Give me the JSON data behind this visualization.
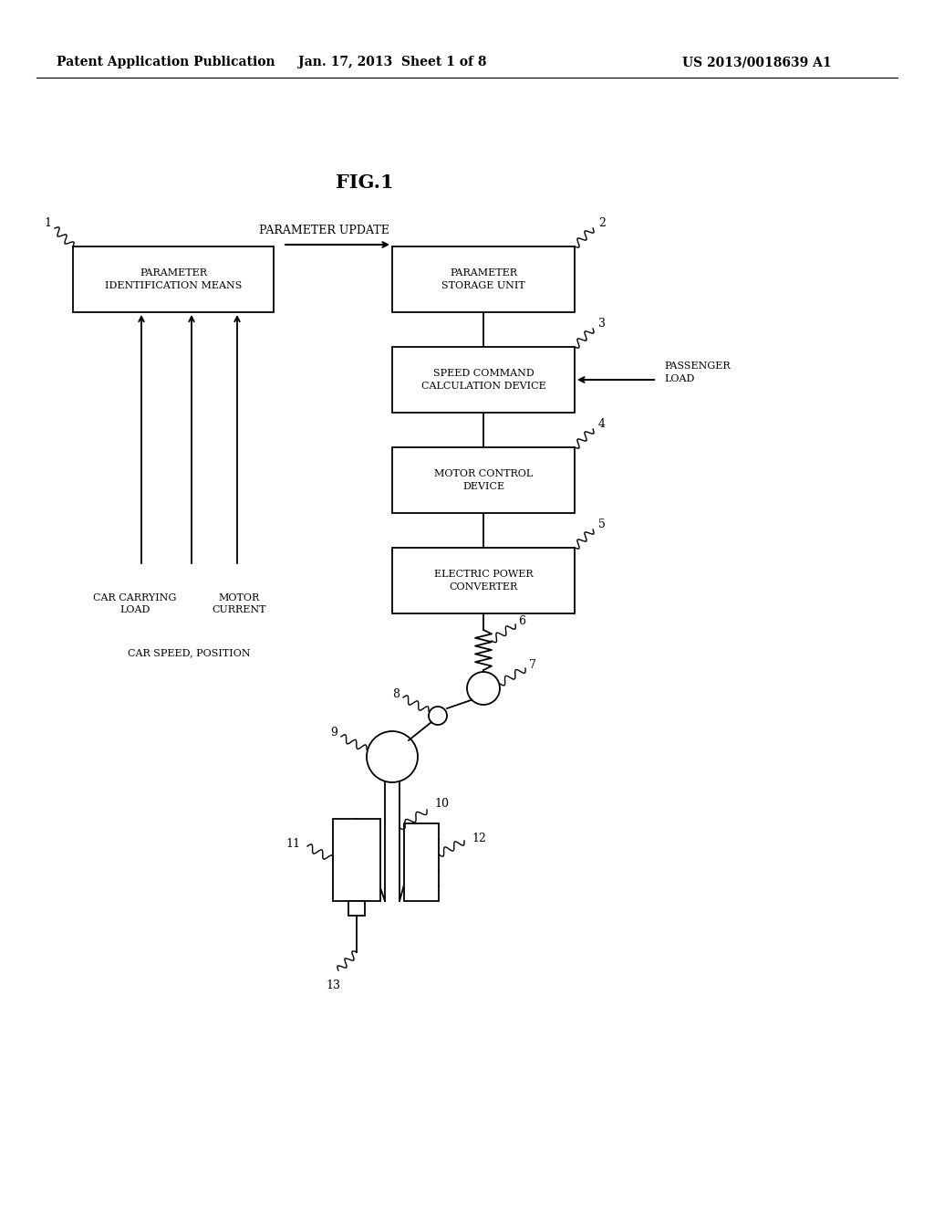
{
  "bg_color": "#ffffff",
  "header_left": "Patent Application Publication",
  "header_mid": "Jan. 17, 2013  Sheet 1 of 8",
  "header_right": "US 2013/0018639 A1",
  "fig_label": "FIG.1",
  "param_update_label": "PARAMETER UPDATE"
}
